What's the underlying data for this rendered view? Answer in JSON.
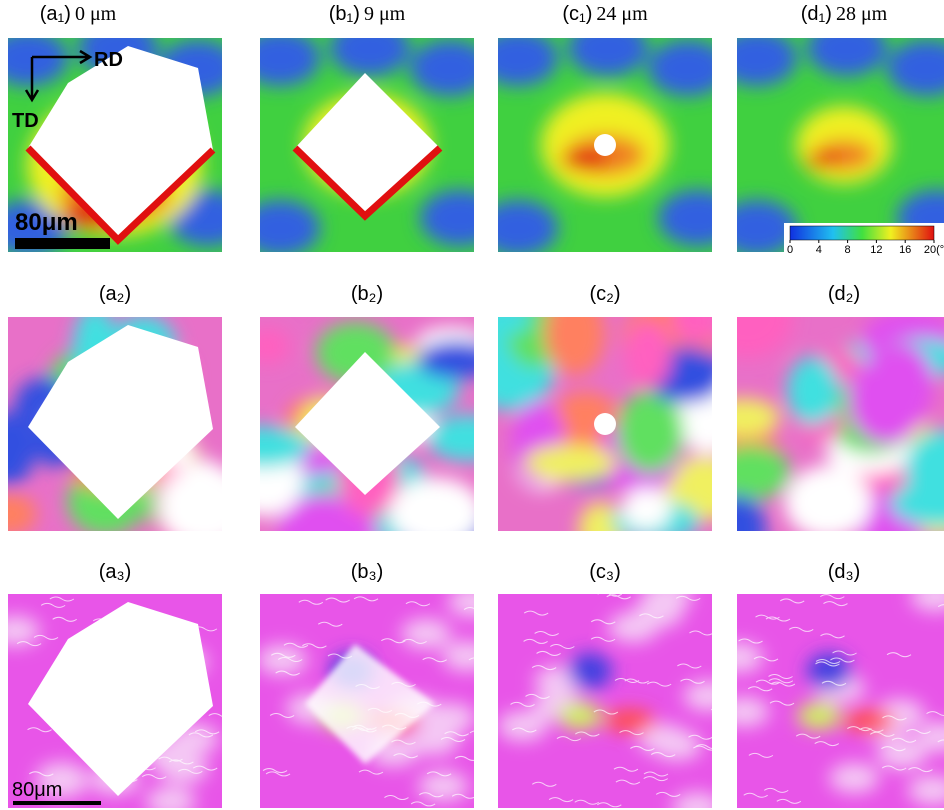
{
  "panels": [
    [
      "(a₁)",
      "(b₁)",
      "(c₁)",
      "(d₁)"
    ],
    [
      "(a₂)",
      "(b₂)",
      "(c₂)",
      "(d₂)"
    ],
    [
      "(a₃)",
      "(b₃)",
      "(c₃)",
      "(d₃)"
    ]
  ],
  "depths": [
    "0 μm",
    "9 μm",
    "24 μm",
    "28 μm"
  ],
  "axes": {
    "rd": "RD",
    "td": "TD"
  },
  "scale_bars": [
    "80μm",
    "80μm"
  ],
  "colorbar": {
    "lim": [
      0,
      20
    ],
    "ticks": [
      0,
      4,
      8,
      12,
      16,
      {
        "value": 20,
        "label": "20(°"
      }
    ]
  }
}
